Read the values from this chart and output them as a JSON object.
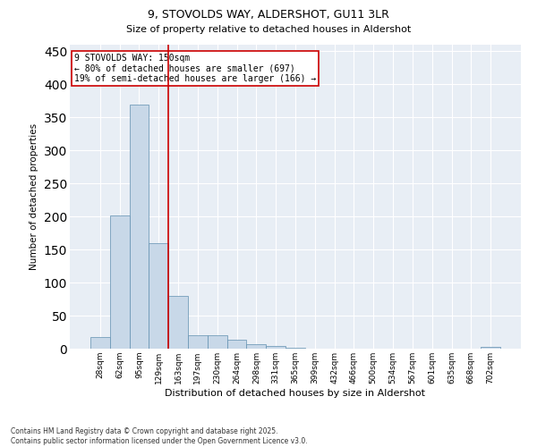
{
  "title1": "9, STOVOLDS WAY, ALDERSHOT, GU11 3LR",
  "title2": "Size of property relative to detached houses in Aldershot",
  "xlabel": "Distribution of detached houses by size in Aldershot",
  "ylabel": "Number of detached properties",
  "categories": [
    "28sqm",
    "62sqm",
    "95sqm",
    "129sqm",
    "163sqm",
    "197sqm",
    "230sqm",
    "264sqm",
    "298sqm",
    "331sqm",
    "365sqm",
    "399sqm",
    "432sqm",
    "466sqm",
    "500sqm",
    "534sqm",
    "567sqm",
    "601sqm",
    "635sqm",
    "668sqm",
    "702sqm"
  ],
  "values": [
    18,
    202,
    370,
    160,
    80,
    20,
    20,
    13,
    7,
    4,
    1,
    0,
    0,
    0,
    0,
    0,
    0,
    0,
    0,
    0,
    3
  ],
  "bar_color": "#c8d8e8",
  "bar_edge_color": "#6090b0",
  "background_color": "#e8eef5",
  "grid_color": "#ffffff",
  "red_line_index": 3.5,
  "annotation_title": "9 STOVOLDS WAY: 150sqm",
  "annotation_line1": "← 80% of detached houses are smaller (697)",
  "annotation_line2": "19% of semi-detached houses are larger (166) →",
  "annotation_box_color": "#ffffff",
  "annotation_box_edge": "#cc0000",
  "footer1": "Contains HM Land Registry data © Crown copyright and database right 2025.",
  "footer2": "Contains public sector information licensed under the Open Government Licence v3.0.",
  "ylim": [
    0,
    460
  ],
  "yticks": [
    0,
    50,
    100,
    150,
    200,
    250,
    300,
    350,
    400,
    450
  ]
}
